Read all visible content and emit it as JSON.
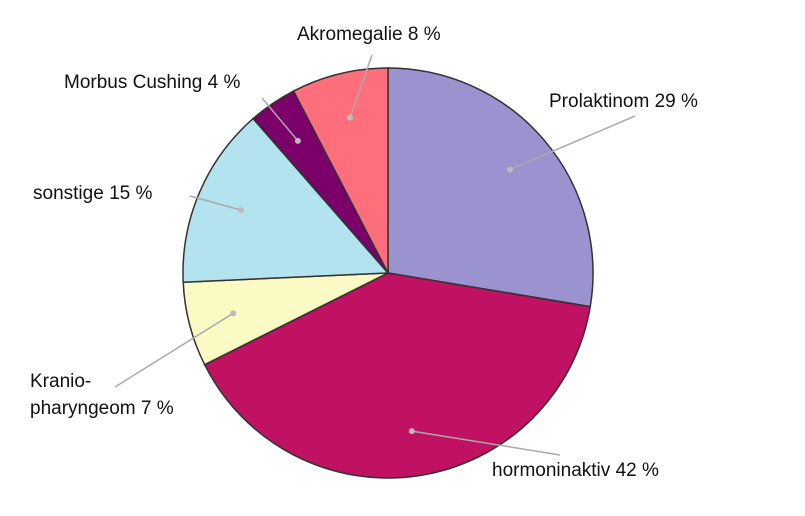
{
  "chart_data": {
    "type": "pie",
    "categories": [
      "Prolaktinom",
      "hormoninaktiv",
      "Kranio-pharyngeom",
      "sonstige",
      "Morbus Cushing",
      "Akromegalie"
    ],
    "values": [
      29,
      42,
      7,
      15,
      4,
      8
    ],
    "value_labels": [
      "29 %",
      "42 %",
      "7 %",
      "15 %",
      "4 %",
      "8 %"
    ],
    "colors": [
      "#9a93d0",
      "#c01162",
      "#fbfac4",
      "#b3e3ee",
      "#7b0069",
      "#ff6e7b"
    ]
  }
}
